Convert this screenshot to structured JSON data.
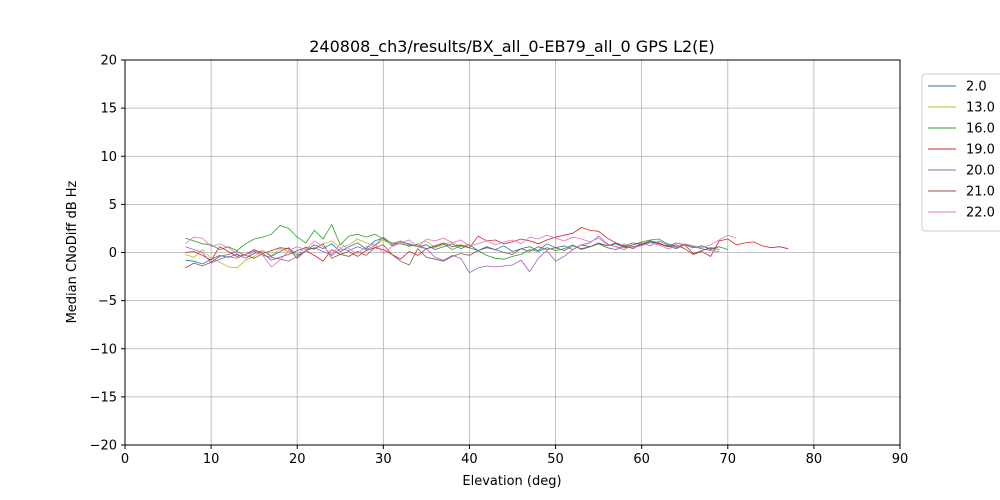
{
  "chart_data": {
    "type": "line",
    "title": "240808_ch3/results/BX_all_0-EB79_all_0 GPS L2(E)",
    "xlabel": "Elevation (deg)",
    "ylabel": "Median CNoDiff dB Hz",
    "xlim": [
      0,
      90
    ],
    "ylim": [
      -20,
      20
    ],
    "xticks": [
      0,
      10,
      20,
      30,
      40,
      50,
      60,
      70,
      80,
      90
    ],
    "yticks": [
      -20,
      -15,
      -10,
      -5,
      0,
      5,
      10,
      15,
      20
    ],
    "grid": true,
    "legend_position": "right-outside",
    "series": [
      {
        "name": "2.0",
        "color": "#1f77b4",
        "x": [
          7,
          8,
          9,
          10,
          11,
          12,
          13,
          14,
          15,
          16,
          17,
          18,
          19,
          20,
          21,
          22,
          23,
          24,
          25,
          26,
          27,
          28,
          29,
          30,
          31,
          32,
          33,
          34,
          35,
          36,
          37,
          38,
          39,
          40,
          41,
          42,
          43,
          44,
          45,
          46,
          47,
          48,
          49,
          50,
          51,
          52,
          53,
          54,
          55,
          56,
          57,
          58,
          59,
          60,
          61,
          62,
          63,
          64,
          65,
          66,
          67,
          68,
          69
        ],
        "y": [
          -0.8,
          -0.9,
          -1.2,
          -0.7,
          -0.3,
          -0.5,
          -0.2,
          -0.6,
          -0.1,
          0.2,
          -0.4,
          0.1,
          0.5,
          -0.3,
          0.2,
          0.8,
          0.4,
          0.9,
          0.1,
          0.6,
          1.0,
          0.4,
          1.2,
          1.5,
          0.7,
          1.1,
          0.9,
          0.6,
          0.8,
          0.3,
          0.6,
          0.9,
          0.4,
          0.8,
          0.2,
          0.5,
          0.3,
          0.7,
          0.1,
          0.4,
          0.6,
          0.2,
          0.9,
          0.5,
          0.7,
          0.3,
          0.8,
          0.6,
          1.0,
          0.7,
          0.9,
          0.5,
          0.6,
          0.8,
          1.1,
          0.9,
          0.7,
          0.4,
          0.8,
          0.5,
          0.7,
          0.3,
          0.6
        ]
      },
      {
        "name": "13.0",
        "color": "#bcbd22",
        "x": [
          7,
          8,
          9,
          10,
          11,
          12,
          13,
          14,
          15,
          16,
          17,
          18,
          19,
          20,
          21,
          22,
          23,
          24,
          25,
          26,
          27,
          28,
          29,
          30,
          31,
          32,
          33,
          34,
          35,
          36,
          37,
          38,
          39,
          40
        ],
        "y": [
          -0.2,
          -0.5,
          0.3,
          -0.6,
          -1.0,
          -1.5,
          -1.6,
          -0.8,
          -0.4,
          0.2,
          -0.3,
          0.4,
          0.1,
          -0.2,
          0.6,
          0.3,
          0.9,
          1.2,
          0.5,
          0.8,
          1.4,
          1.0,
          0.7,
          1.3,
          0.8,
          1.1,
          0.6,
          0.9,
          1.2,
          0.5,
          0.8,
          1.1,
          0.6,
          0.9
        ]
      },
      {
        "name": "16.0",
        "color": "#2ca02c",
        "x": [
          7,
          8,
          9,
          10,
          11,
          12,
          13,
          14,
          15,
          16,
          17,
          18,
          19,
          20,
          21,
          22,
          23,
          24,
          25,
          26,
          27,
          28,
          29,
          30,
          31,
          32,
          33,
          34,
          35,
          36,
          37,
          38,
          39,
          40,
          41,
          42,
          43,
          44,
          45,
          46,
          47,
          48,
          49,
          50,
          51,
          52,
          53,
          54,
          55,
          56,
          57,
          58,
          59,
          60,
          61,
          62,
          63,
          64,
          65,
          66,
          67,
          68,
          69,
          70
        ],
        "y": [
          1.5,
          1.2,
          0.9,
          0.8,
          0.3,
          0.6,
          0.2,
          0.9,
          1.4,
          1.6,
          1.9,
          2.8,
          2.5,
          1.6,
          1.0,
          2.3,
          1.4,
          2.9,
          0.8,
          1.7,
          1.9,
          1.6,
          1.9,
          1.4,
          1.0,
          0.9,
          0.7,
          0.8,
          0.4,
          0.6,
          0.9,
          0.3,
          0.7,
          0.5,
          0.2,
          -0.3,
          -0.6,
          -0.7,
          -0.4,
          -0.2,
          0.3,
          0.1,
          0.5,
          0.2,
          0.4,
          0.8,
          0.3,
          0.6,
          0.9,
          0.7,
          1.0,
          0.6,
          0.8,
          1.1,
          1.3,
          1.4,
          0.9,
          0.6,
          0.8,
          0.5,
          0.7,
          0.4,
          0.6,
          0.3
        ]
      },
      {
        "name": "19.0",
        "color": "#d62728",
        "x": [
          7,
          8,
          9,
          10,
          11,
          12,
          13,
          14,
          15,
          16,
          17,
          18,
          19,
          20,
          21,
          22,
          23,
          24,
          25,
          26,
          27,
          28,
          29,
          30,
          31,
          32,
          33,
          34,
          35,
          36,
          37,
          38,
          39,
          40,
          41,
          42,
          43,
          44,
          45,
          46,
          47,
          48,
          49,
          50,
          51,
          52,
          53,
          54,
          55,
          56,
          57,
          58,
          59,
          60,
          61,
          62,
          63,
          64,
          65,
          66,
          67,
          68,
          69,
          70,
          71,
          72,
          73,
          74,
          75,
          76,
          77
        ],
        "y": [
          0.0,
          0.1,
          -0.3,
          -0.8,
          0.6,
          0.1,
          -0.4,
          -0.2,
          0.3,
          -0.1,
          0.2,
          0.5,
          0.4,
          -0.6,
          0.2,
          -0.3,
          -0.9,
          0.3,
          -0.2,
          0.1,
          -0.4,
          0.2,
          0.5,
          0.3,
          -0.2,
          -0.7,
          0.1,
          -0.3,
          0.4,
          0.7,
          1.0,
          0.6,
          0.8,
          0.5,
          1.7,
          1.2,
          1.3,
          0.9,
          1.1,
          1.4,
          1.2,
          0.9,
          1.3,
          1.6,
          1.8,
          2.0,
          2.6,
          2.3,
          2.2,
          1.5,
          1.0,
          0.7,
          0.4,
          0.9,
          1.2,
          1.0,
          0.6,
          0.8,
          0.4,
          -0.2,
          0.1,
          -0.4,
          1.2,
          1.4,
          0.8,
          1.0,
          1.1,
          0.7,
          0.5,
          0.6,
          0.4
        ]
      },
      {
        "name": "20.0",
        "color": "#9467bd",
        "x": [
          7,
          8,
          9,
          10,
          11,
          12,
          13,
          14,
          15,
          16,
          17,
          18,
          19,
          20,
          21,
          22,
          23,
          24,
          25,
          26,
          27,
          28,
          29,
          30,
          31,
          32,
          33,
          34,
          35,
          36,
          37,
          38,
          39,
          40,
          41,
          42,
          43,
          44,
          45,
          46,
          47,
          48,
          49,
          50,
          51,
          52,
          53,
          54,
          55,
          56,
          57,
          58,
          59,
          60,
          61,
          62,
          63,
          64,
          65,
          66,
          67,
          68,
          69
        ],
        "y": [
          0.6,
          0.3,
          0.0,
          -1.1,
          -0.7,
          -0.4,
          -0.6,
          -0.2,
          0.1,
          -0.3,
          -0.5,
          -0.7,
          -0.9,
          -0.4,
          0.2,
          0.5,
          0.1,
          -0.3,
          0.4,
          0.2,
          0.6,
          0.3,
          0.7,
          1.6,
          0.9,
          1.2,
          0.8,
          0.6,
          0.4,
          -0.5,
          -0.8,
          -0.3,
          -0.6,
          -2.1,
          -1.6,
          -1.4,
          -1.5,
          -1.4,
          -1.3,
          -0.8,
          -2.0,
          -0.6,
          0.2,
          -0.9,
          -0.4,
          0.3,
          0.8,
          1.0,
          1.7,
          0.9,
          0.6,
          0.3,
          0.8,
          1.0,
          0.7,
          1.2,
          0.8,
          0.5,
          0.9,
          0.6,
          0.4,
          0.2,
          0.1
        ]
      },
      {
        "name": "21.0",
        "color": "#8c564b",
        "x": [
          7,
          8,
          9,
          10,
          11,
          12,
          13,
          14,
          15,
          16,
          17,
          18,
          19,
          20,
          21,
          22,
          23,
          24,
          25,
          26,
          27,
          28,
          29,
          30,
          31,
          32,
          33,
          34,
          35,
          36,
          37,
          38,
          39,
          40,
          41,
          42,
          43,
          44,
          45,
          46,
          47,
          48,
          49,
          50,
          51,
          52,
          53,
          54,
          55,
          56,
          57,
          58,
          59,
          60,
          61,
          62,
          63,
          64,
          65,
          66,
          67,
          68,
          69
        ],
        "y": [
          -1.6,
          -1.1,
          -1.4,
          -1.0,
          -0.4,
          -0.2,
          0.1,
          -0.3,
          -0.6,
          -0.1,
          -0.8,
          -0.5,
          -0.2,
          0.2,
          0.5,
          0.4,
          0.9,
          -0.6,
          -0.2,
          -0.4,
          0.1,
          -0.3,
          0.5,
          0.8,
          -0.2,
          -0.9,
          -1.3,
          0.4,
          -0.5,
          -0.7,
          -0.9,
          -0.4,
          -0.1,
          -0.3,
          0.2,
          0.6,
          0.3,
          0.0,
          -0.2,
          0.4,
          0.1,
          0.6,
          0.3,
          0.5,
          0.2,
          0.7,
          0.4,
          0.6,
          0.9,
          0.5,
          0.3,
          0.7,
          1.0,
          0.8,
          1.2,
          0.9,
          0.6,
          1.0,
          0.8,
          -0.1,
          0.2,
          0.5,
          0.3
        ]
      },
      {
        "name": "22.0",
        "color": "#e377c2",
        "x": [
          7,
          8,
          9,
          10,
          11,
          12,
          13,
          14,
          15,
          16,
          17,
          18,
          19,
          20,
          21,
          22,
          23,
          24,
          25,
          26,
          27,
          28,
          29,
          30,
          31,
          32,
          33,
          34,
          35,
          36,
          37,
          38,
          39,
          40,
          41,
          42,
          43,
          44,
          45,
          46,
          47,
          48,
          49,
          50,
          51,
          52,
          53,
          54,
          55,
          56,
          57,
          58,
          59,
          60,
          61,
          62,
          63,
          64,
          65,
          66,
          67,
          68,
          69,
          70,
          71
        ],
        "y": [
          0.9,
          1.6,
          1.5,
          0.6,
          0.9,
          0.5,
          -0.1,
          -0.6,
          0.2,
          -0.3,
          -1.5,
          -0.8,
          0.2,
          0.6,
          0.3,
          1.2,
          0.6,
          -0.2,
          0.9,
          0.4,
          -0.1,
          0.6,
          0.9,
          -0.1,
          0.6,
          1.0,
          1.3,
          0.6,
          1.4,
          1.2,
          1.5,
          1.0,
          1.3,
          0.7,
          0.9,
          1.2,
          0.8,
          1.1,
          1.3,
          0.9,
          1.6,
          1.4,
          1.8,
          1.5,
          1.2,
          1.6,
          1.4,
          1.1,
          1.5,
          0.8,
          0.6,
          0.9,
          0.5,
          0.7,
          1.0,
          0.8,
          0.4,
          0.6,
          0.9,
          0.7,
          0.5,
          0.8,
          1.3,
          1.8,
          1.5
        ]
      }
    ]
  }
}
